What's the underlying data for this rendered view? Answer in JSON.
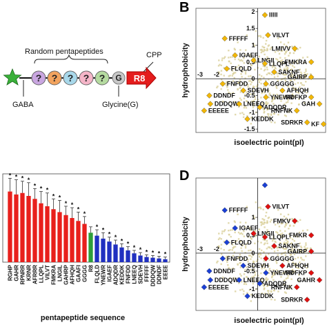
{
  "panels": {
    "b_letter": "B",
    "d_letter": "D"
  },
  "schematic": {
    "random_label": "Random pentapeptides",
    "cpp_label": "CPP",
    "gaba_label": "GABA",
    "glycine_label": "Glycine(G)",
    "question_mark": "?",
    "glycine_letter": "G",
    "r8_label": "R8",
    "ball_colors": [
      "#c9a6e0",
      "#f2a35e",
      "#a8d8ea",
      "#f5b5c8",
      "#b5dba0"
    ]
  },
  "chart_data": [
    {
      "type": "bar",
      "panel": "C",
      "xlabel": "pentapeptide sequence",
      "ylabel": "",
      "categories": [
        "RGHP",
        "GAHR",
        "RPNRR",
        "KRNR",
        "AFRRR",
        "LLQPL",
        "VILVT",
        "FMKRA",
        "LNGIL",
        "GAHRP",
        "AFHQH",
        "GAAFI",
        "GGGG",
        "R8",
        "FLQLD",
        "YNEWR",
        "IGAEF",
        "ADQDR",
        "KEDDK",
        "FNFDD",
        "LNEEQ",
        "SDEVH",
        "FFFFF",
        "DDDQW",
        "DDNDF",
        "EEEE"
      ],
      "groups": [
        "red",
        "red",
        "red",
        "red",
        "red",
        "red",
        "red",
        "red",
        "red",
        "red",
        "red",
        "red",
        "red",
        "green",
        "blue",
        "blue",
        "blue",
        "blue",
        "blue",
        "blue",
        "blue",
        "blue",
        "blue",
        "blue",
        "blue",
        "blue"
      ],
      "values": [
        96,
        92,
        94,
        90,
        86,
        80,
        76,
        72,
        68,
        64,
        60,
        56,
        52,
        40,
        36,
        32,
        28,
        24,
        20,
        16,
        12,
        9,
        7,
        6,
        5,
        4
      ],
      "errors": [
        18,
        20,
        16,
        18,
        14,
        16,
        18,
        14,
        16,
        12,
        14,
        12,
        10,
        8,
        8,
        8,
        6,
        6,
        5,
        5,
        4,
        4,
        3,
        3,
        3,
        3
      ],
      "significance_mark": "*",
      "colors": {
        "red": "#e8201c",
        "green": "#2e9e3a",
        "blue": "#2030c0"
      },
      "ylim": [
        0,
        120
      ]
    },
    {
      "type": "scatter",
      "panel": "B",
      "xlabel": "isoelectric point(pI)",
      "ylabel": "hydrophobicity",
      "x_ticks": [
        "-3",
        "-2",
        "-1",
        "0",
        "1",
        "2",
        "3"
      ],
      "y_ticks": [
        "2",
        "1.5",
        "1",
        "0.5",
        "0",
        "-0.5",
        "-1",
        "-1.5"
      ],
      "xlim": [
        -3,
        3.3
      ],
      "ylim": [
        -1.6,
        2.1
      ],
      "marker_color": "#f2b705",
      "cloud_color": "#d9cf9a",
      "points": [
        {
          "label": "IIIII",
          "x": 0.35,
          "y": 1.9,
          "c": "orange"
        },
        {
          "label": "VILVT",
          "x": 0.5,
          "y": 1.3,
          "c": "orange"
        },
        {
          "label": "FFFFF",
          "x": -1.6,
          "y": 1.2,
          "c": "orange"
        },
        {
          "label": "LMIVV",
          "x": 1.8,
          "y": 0.9,
          "c": "orange"
        },
        {
          "label": "LNGII",
          "x": -0.2,
          "y": 0.55,
          "c": "orange"
        },
        {
          "label": "IGAEF",
          "x": -1.1,
          "y": 0.7,
          "c": "orange"
        },
        {
          "label": "LLQPL",
          "x": 0.35,
          "y": 0.45,
          "c": "orange"
        },
        {
          "label": "FMKRA",
          "x": 2.6,
          "y": 0.5,
          "c": "orange"
        },
        {
          "label": "FLQLD",
          "x": -1.5,
          "y": 0.3,
          "c": "orange"
        },
        {
          "label": "SAKNF",
          "x": 0.8,
          "y": 0.2,
          "c": "orange"
        },
        {
          "label": "GAIRP",
          "x": 2.6,
          "y": 0.05,
          "c": "orange"
        },
        {
          "label": "FNFDD",
          "x": -1.7,
          "y": -0.15,
          "c": "orange"
        },
        {
          "label": "GGGGG",
          "x": 0.4,
          "y": -0.15,
          "c": "orange"
        },
        {
          "label": "SDEVH",
          "x": -0.7,
          "y": -0.35,
          "c": "orange"
        },
        {
          "label": "AFHQH",
          "x": 1.2,
          "y": -0.35,
          "c": "orange"
        },
        {
          "label": "DDNDF",
          "x": -2.35,
          "y": -0.5,
          "c": "orange"
        },
        {
          "label": "YNEWR",
          "x": 0.4,
          "y": -0.55,
          "c": "orange"
        },
        {
          "label": "RDFKP",
          "x": 2.6,
          "y": -0.55,
          "c": "orange"
        },
        {
          "label": "DDDQW",
          "x": -2.3,
          "y": -0.75,
          "c": "orange"
        },
        {
          "label": "LNEEQ",
          "x": -0.9,
          "y": -0.75,
          "c": "orange"
        },
        {
          "label": "ADQDR",
          "x": 0.1,
          "y": -0.85,
          "c": "orange"
        },
        {
          "label": "GAH",
          "x": 3.0,
          "y": -0.75,
          "c": "orange"
        },
        {
          "label": "EEEEE",
          "x": -2.6,
          "y": -0.95,
          "c": "orange"
        },
        {
          "label": "RNFNK",
          "x": 1.9,
          "y": -0.95,
          "c": "orange"
        },
        {
          "label": "KEDDK",
          "x": -0.5,
          "y": -1.2,
          "c": "orange"
        },
        {
          "label": "SDRKR",
          "x": 2.4,
          "y": -1.3,
          "c": "orange"
        },
        {
          "label": "KF",
          "x": 3.2,
          "y": -1.35,
          "c": "orange"
        }
      ]
    },
    {
      "type": "scatter",
      "panel": "D",
      "xlabel": "isoelectric point(pI)",
      "ylabel": "hydrophobicity",
      "x_ticks": [
        "-3",
        "-2",
        "-1",
        "0",
        "1",
        "2",
        "3"
      ],
      "y_ticks": [
        "1",
        "0.5",
        "0",
        "-0.5",
        "-1"
      ],
      "xlim": [
        -3,
        3.3
      ],
      "ylim": [
        -1.6,
        2.1
      ],
      "marker_colors": {
        "red": "#e01010",
        "blue": "#1a3fd6"
      },
      "cloud_color": "#d9cf9a",
      "points": [
        {
          "label": "",
          "x": 0.35,
          "y": 1.9,
          "c": "blue"
        },
        {
          "label": "VILVT",
          "x": 0.5,
          "y": 1.3,
          "c": "red"
        },
        {
          "label": "FFFFF",
          "x": -1.6,
          "y": 1.2,
          "c": "blue"
        },
        {
          "label": "FMKV",
          "x": 1.8,
          "y": 0.9,
          "c": "red"
        },
        {
          "label": "LNGII",
          "x": -0.2,
          "y": 0.55,
          "c": "red"
        },
        {
          "label": "IGAEF",
          "x": -1.1,
          "y": 0.7,
          "c": "blue"
        },
        {
          "label": "LLQPL",
          "x": 0.35,
          "y": 0.45,
          "c": "red"
        },
        {
          "label": "FMKR",
          "x": 2.6,
          "y": 0.5,
          "c": "red"
        },
        {
          "label": "FLQLD",
          "x": -1.5,
          "y": 0.3,
          "c": "blue"
        },
        {
          "label": "SAKNF",
          "x": 0.8,
          "y": 0.2,
          "c": "red"
        },
        {
          "label": "GAIRP",
          "x": 2.6,
          "y": 0.05,
          "c": "red"
        },
        {
          "label": "FNFDD",
          "x": -1.7,
          "y": -0.15,
          "c": "blue"
        },
        {
          "label": "GGGGG",
          "x": 0.4,
          "y": -0.15,
          "c": "red"
        },
        {
          "label": "SDEVH",
          "x": -0.7,
          "y": -0.35,
          "c": "blue"
        },
        {
          "label": "AFHQH",
          "x": 1.2,
          "y": -0.35,
          "c": "red"
        },
        {
          "label": "DDNDF",
          "x": -2.35,
          "y": -0.5,
          "c": "blue"
        },
        {
          "label": "YNEWR",
          "x": 0.4,
          "y": -0.55,
          "c": "blue"
        },
        {
          "label": "RDFKP",
          "x": 2.6,
          "y": -0.55,
          "c": "red"
        },
        {
          "label": "DDDQW",
          "x": -2.3,
          "y": -0.75,
          "c": "blue"
        },
        {
          "label": "LNEEQ",
          "x": -0.9,
          "y": -0.75,
          "c": "blue"
        },
        {
          "label": "ADQDR",
          "x": 0.1,
          "y": -0.85,
          "c": "blue"
        },
        {
          "label": "GAHR",
          "x": 3.0,
          "y": -0.75,
          "c": "red"
        },
        {
          "label": "EEEEE",
          "x": -2.6,
          "y": -0.95,
          "c": "blue"
        },
        {
          "label": "RNFNK",
          "x": 1.9,
          "y": -0.95,
          "c": "red"
        },
        {
          "label": "KEDDK",
          "x": -0.5,
          "y": -1.2,
          "c": "blue"
        },
        {
          "label": "SDRKR",
          "x": 2.4,
          "y": -1.3,
          "c": "red"
        }
      ]
    }
  ]
}
